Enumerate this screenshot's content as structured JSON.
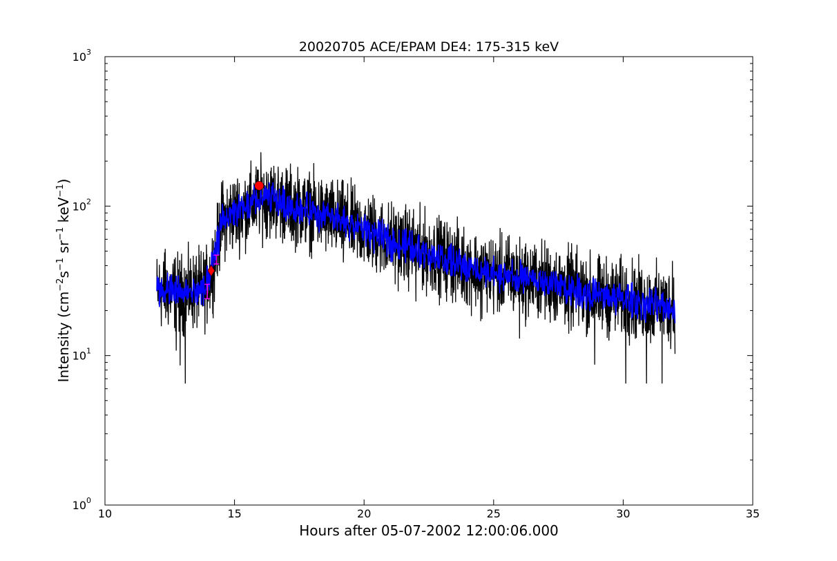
{
  "chart_data": {
    "type": "line",
    "title": "20020705 ACE/EPAM DE4: 175-315 keV",
    "xlabel": "Hours after 05-07-2002 12:00:06.000",
    "ylabel": {
      "prefix": "Intensity (cm",
      "sup1": "−2",
      "part2": "s",
      "sup2": "−1",
      "part3": " sr",
      "sup3": "−1",
      "part4": " keV",
      "sup4": "−1",
      "suffix": ")"
    },
    "xlim": [
      10,
      35
    ],
    "ylim": [
      1,
      1000
    ],
    "yscale": "log",
    "grid": false,
    "x_ticks": [
      10,
      15,
      20,
      25,
      30,
      35
    ],
    "x_tick_labels": [
      "10",
      "15",
      "20",
      "25",
      "30",
      "35"
    ],
    "y_ticks": [
      {
        "value": 1,
        "base": "10",
        "exp": "0"
      },
      {
        "value": 10,
        "base": "10",
        "exp": "1"
      },
      {
        "value": 100,
        "base": "10",
        "exp": "2"
      },
      {
        "value": 1000,
        "base": "10",
        "exp": "3"
      }
    ],
    "x_range_data": [
      12.0,
      32.0
    ],
    "series": [
      {
        "role": "raw",
        "color": "#000000",
        "trend": {
          "x": [
            12.0,
            12.5,
            13.0,
            13.5,
            13.9,
            14.1,
            14.3,
            14.5,
            15.0,
            15.5,
            16.0,
            16.5,
            17.0,
            18.0,
            19.0,
            20.0,
            21.0,
            22.0,
            23.0,
            24.0,
            25.0,
            26.0,
            27.0,
            28.0,
            29.0,
            30.0,
            31.0,
            32.0
          ],
          "y": [
            27,
            27,
            26,
            27,
            28,
            36,
            50,
            80,
            90,
            98,
            112,
            112,
            102,
            92,
            80,
            70,
            58,
            52,
            45,
            39,
            35,
            33,
            31,
            28,
            25,
            24,
            22,
            21
          ]
        },
        "noise_log10_amp": 0.19,
        "spike_lows": [
          {
            "x": 12.75,
            "y": 10.8
          },
          {
            "x": 12.9,
            "y": 8.6
          },
          {
            "x": 13.1,
            "y": 6.5
          },
          {
            "x": 16.3,
            "y": 60
          },
          {
            "x": 19.2,
            "y": 42
          },
          {
            "x": 21.2,
            "y": 30
          },
          {
            "x": 22.0,
            "y": 23
          },
          {
            "x": 24.5,
            "y": 17
          },
          {
            "x": 26.0,
            "y": 13
          },
          {
            "x": 27.9,
            "y": 14
          },
          {
            "x": 28.9,
            "y": 8.7
          },
          {
            "x": 30.1,
            "y": 6.5
          },
          {
            "x": 30.9,
            "y": 6.5
          },
          {
            "x": 31.5,
            "y": 6.5
          },
          {
            "x": 31.9,
            "y": 6.5
          }
        ],
        "spike_highs": [
          {
            "x": 12.3,
            "y": 49
          },
          {
            "x": 16.3,
            "y": 165
          },
          {
            "x": 17.5,
            "y": 152
          },
          {
            "x": 18.7,
            "y": 128
          },
          {
            "x": 25.6,
            "y": 64
          },
          {
            "x": 31.9,
            "y": 43
          }
        ]
      },
      {
        "role": "smoothed",
        "color": "#0000ff",
        "noise_log10_amp": 0.07
      }
    ],
    "markers": [
      {
        "shape": "circle",
        "color": "#ff0000",
        "x": 15.95,
        "y": 137
      },
      {
        "shape": "diamond",
        "color": "#ff0000",
        "x": 14.1,
        "y": 37
      }
    ],
    "error_bars": [
      {
        "x": 13.95,
        "y_low": 24,
        "y_high": 30,
        "color": "#ff00ff"
      },
      {
        "x": 14.3,
        "y_low": 41,
        "y_high": 47,
        "color": "#ff00ff"
      }
    ]
  }
}
